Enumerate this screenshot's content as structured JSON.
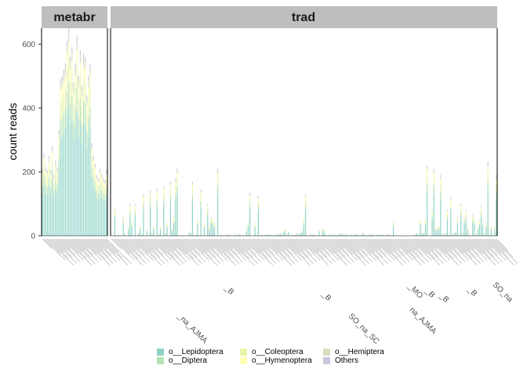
{
  "chart_data": {
    "type": "bar",
    "stacked": true,
    "ylabel": "count reads",
    "ylim": [
      0,
      650
    ],
    "yticks": [
      0,
      200,
      400,
      600
    ],
    "grid": false,
    "legend_position": "bottom",
    "orders": [
      "o__Lepidoptera",
      "o__Diptera",
      "o__Coleoptera",
      "o__Hymenoptera",
      "o__Hemiptera",
      "Others"
    ],
    "colors": {
      "o__Lepidoptera": "#8dd3c7",
      "o__Diptera": "#b3e2b3",
      "o__Coleoptera": "#e8f5a8",
      "o__Hymenoptera": "#ffffb3",
      "o__Hemiptera": "#d9dcc0",
      "Others": "#c9c6dc"
    },
    "panels": [
      {
        "name": "metabr",
        "totals": [
          210,
          260,
          215,
          205,
          250,
          205,
          280,
          190,
          235,
          215,
          330,
          490,
          500,
          520,
          540,
          610,
          650,
          560,
          590,
          480,
          540,
          625,
          500,
          580,
          470,
          570,
          560,
          440,
          500,
          540,
          290,
          250,
          225,
          190,
          180,
          210,
          195,
          180,
          175,
          205
        ]
      },
      {
        "name": "trad",
        "totals": [
          0,
          0,
          85,
          0,
          5,
          0,
          0,
          60,
          8,
          0,
          30,
          100,
          45,
          0,
          100,
          0,
          10,
          30,
          5,
          130,
          0,
          20,
          0,
          140,
          10,
          30,
          0,
          150,
          5,
          30,
          0,
          155,
          10,
          40,
          0,
          170,
          25,
          60,
          180,
          210,
          0,
          0,
          0,
          0,
          0,
          0,
          15,
          10,
          170,
          0,
          5,
          50,
          0,
          145,
          0,
          40,
          0,
          100,
          30,
          60,
          55,
          40,
          0,
          210,
          0,
          5,
          0,
          0,
          5,
          3,
          5,
          0,
          0,
          5,
          0,
          5,
          5,
          0,
          5,
          0,
          20,
          45,
          135,
          0,
          0,
          40,
          0,
          125,
          0,
          5,
          0,
          3,
          5,
          5,
          3,
          5,
          0,
          5,
          5,
          5,
          10,
          5,
          15,
          20,
          5,
          15,
          0,
          5,
          3,
          5,
          10,
          5,
          10,
          20,
          55,
          130,
          3,
          0,
          5,
          5,
          5,
          3,
          0,
          20,
          0,
          25,
          20,
          5,
          0,
          5,
          3,
          5,
          5,
          0,
          5,
          5,
          10,
          5,
          5,
          5,
          5,
          0,
          5,
          3,
          5,
          5,
          5,
          0,
          5,
          10,
          5,
          0,
          3,
          5,
          5,
          5,
          0,
          3,
          5,
          5,
          3,
          5,
          0,
          3,
          5,
          5,
          0,
          45,
          0,
          0,
          0,
          0,
          0,
          0,
          0,
          0,
          0,
          0,
          0,
          0,
          5,
          10,
          5,
          50,
          10,
          10,
          50,
          220,
          0,
          0,
          80,
          210,
          25,
          25,
          30,
          190,
          5,
          5,
          10,
          80,
          5,
          120,
          5,
          10,
          15,
          60,
          5,
          100,
          10,
          60,
          80,
          25,
          5,
          0,
          65,
          55,
          5,
          25,
          50,
          95,
          45,
          5,
          40,
          230,
          5,
          30,
          5,
          30,
          190
        ]
      }
    ],
    "xtick_labels_visible": [
      "_B",
      "_na_AJMA",
      "_B",
      "SO_na_SC",
      "na_AJMA",
      "_B",
      "SO_na",
      "_B",
      "_MO",
      "_B"
    ]
  }
}
